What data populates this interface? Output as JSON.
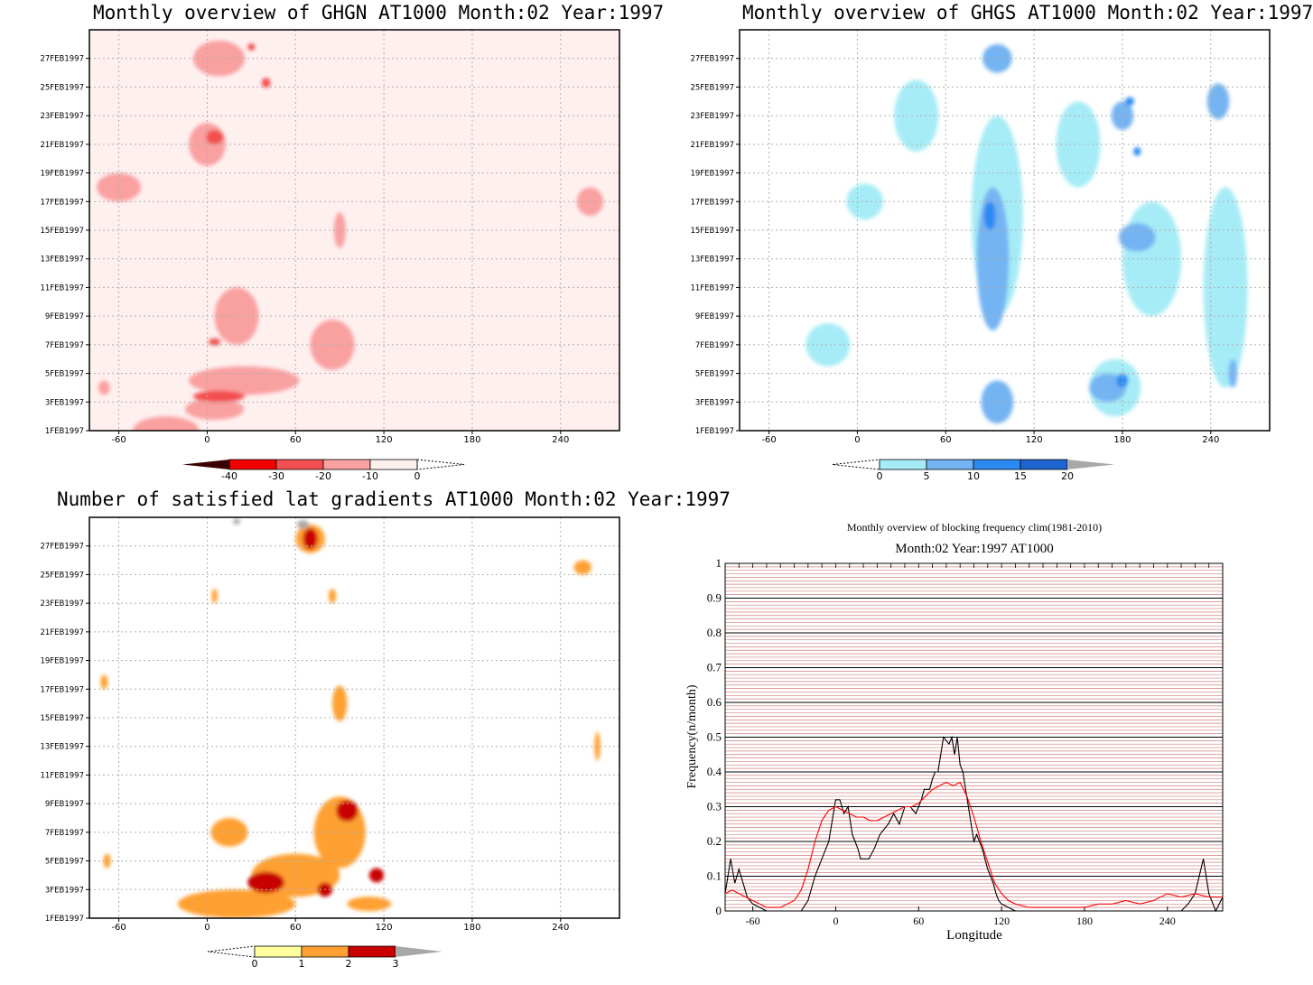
{
  "colors": {
    "ghgn": [
      "#fff0f0",
      "#f9a0a0",
      "#f25050",
      "#f00000",
      "#3a0000"
    ],
    "ghgs": [
      "#a6ecf6",
      "#74b4f2",
      "#2b8af2",
      "#1e63d0",
      "#a8a8a8"
    ],
    "grad": [
      "#ffffa0",
      "#ffa030",
      "#c80000",
      "#a8a8a8"
    ],
    "freq_series": [
      "#000000",
      "#ff0000"
    ]
  },
  "chart_data": [
    {
      "type": "heatmap",
      "title": "Monthly overview of GHGN AT1000 Month:02 Year:1997",
      "x_ticks": [
        "-60",
        "0",
        "60",
        "120",
        "180",
        "240"
      ],
      "y_ticks": [
        "1FEB1997",
        "3FEB1997",
        "5FEB1997",
        "7FEB1997",
        "9FEB1997",
        "11FEB1997",
        "13FEB1997",
        "15FEB1997",
        "17FEB1997",
        "19FEB1997",
        "21FEB1997",
        "23FEB1997",
        "25FEB1997",
        "27FEB1997"
      ],
      "xlim": [
        -80,
        280
      ],
      "colorbar": {
        "levels": [
          "-40",
          "-30",
          "-20",
          "-10",
          "0"
        ]
      },
      "blobs": [
        {
          "level": 1,
          "x": -28,
          "y": 0,
          "w": 45,
          "h": 2
        },
        {
          "level": 1,
          "x": 8,
          "y": 26,
          "w": 35,
          "h": 2.5
        },
        {
          "level": 1,
          "x": 0,
          "y": 20,
          "w": 25,
          "h": 3
        },
        {
          "level": 1,
          "x": -60,
          "y": 17,
          "w": 30,
          "h": 2
        },
        {
          "level": 1,
          "x": 20,
          "y": 8,
          "w": 30,
          "h": 4
        },
        {
          "level": 1,
          "x": 85,
          "y": 6,
          "w": 30,
          "h": 3.5
        },
        {
          "level": 1,
          "x": 25,
          "y": 3.5,
          "w": 75,
          "h": 2
        },
        {
          "level": 1,
          "x": 5,
          "y": 1.5,
          "w": 40,
          "h": 1.5
        },
        {
          "level": 1,
          "x": 90,
          "y": 14,
          "w": 8,
          "h": 2.5
        },
        {
          "level": 1,
          "x": 260,
          "y": 16,
          "w": 18,
          "h": 2
        },
        {
          "level": 1,
          "x": -70,
          "y": 3,
          "w": 8,
          "h": 1
        },
        {
          "level": 2,
          "x": 8,
          "y": 2.4,
          "w": 35,
          "h": 0.8
        },
        {
          "level": 2,
          "x": 5,
          "y": 20.5,
          "w": 12,
          "h": 1
        },
        {
          "level": 2,
          "x": 40,
          "y": 24.3,
          "w": 6,
          "h": 0.7
        },
        {
          "level": 2,
          "x": 5,
          "y": 6.2,
          "w": 8,
          "h": 0.5
        },
        {
          "level": 2,
          "x": 30,
          "y": 26.8,
          "w": 5,
          "h": 0.5
        }
      ]
    },
    {
      "type": "heatmap",
      "title": "Monthly overview of GHGS AT1000 Month:02 Year:1997",
      "x_ticks": [
        "-60",
        "0",
        "60",
        "120",
        "180",
        "240"
      ],
      "y_ticks": [
        "1FEB1997",
        "3FEB1997",
        "5FEB1997",
        "7FEB1997",
        "9FEB1997",
        "11FEB1997",
        "13FEB1997",
        "15FEB1997",
        "17FEB1997",
        "19FEB1997",
        "21FEB1997",
        "23FEB1997",
        "25FEB1997",
        "27FEB1997"
      ],
      "xlim": [
        -80,
        280
      ],
      "colorbar": {
        "levels": [
          "0",
          "5",
          "10",
          "15",
          "20"
        ]
      },
      "blobs": [
        {
          "level": 0,
          "x": 95,
          "y": 15,
          "w": 35,
          "h": 14
        },
        {
          "level": 0,
          "x": 200,
          "y": 12,
          "w": 40,
          "h": 8
        },
        {
          "level": 0,
          "x": 250,
          "y": 10,
          "w": 30,
          "h": 14
        },
        {
          "level": 0,
          "x": -20,
          "y": 6,
          "w": 30,
          "h": 3
        },
        {
          "level": 0,
          "x": 150,
          "y": 20,
          "w": 30,
          "h": 6
        },
        {
          "level": 0,
          "x": 40,
          "y": 22,
          "w": 30,
          "h": 5
        },
        {
          "level": 0,
          "x": 175,
          "y": 3,
          "w": 35,
          "h": 4
        },
        {
          "level": 0,
          "x": 5,
          "y": 16,
          "w": 25,
          "h": 2.5
        },
        {
          "level": 1,
          "x": 92,
          "y": 12,
          "w": 22,
          "h": 10
        },
        {
          "level": 1,
          "x": 95,
          "y": 2,
          "w": 22,
          "h": 3
        },
        {
          "level": 1,
          "x": 170,
          "y": 3,
          "w": 25,
          "h": 2
        },
        {
          "level": 1,
          "x": 190,
          "y": 13.5,
          "w": 25,
          "h": 2
        },
        {
          "level": 1,
          "x": 180,
          "y": 22,
          "w": 15,
          "h": 2
        },
        {
          "level": 1,
          "x": 95,
          "y": 26,
          "w": 20,
          "h": 2
        },
        {
          "level": 1,
          "x": 245,
          "y": 23,
          "w": 15,
          "h": 2.5
        },
        {
          "level": 1,
          "x": 255,
          "y": 4,
          "w": 6,
          "h": 2
        },
        {
          "level": 2,
          "x": 90,
          "y": 15,
          "w": 8,
          "h": 2
        },
        {
          "level": 2,
          "x": 180,
          "y": 3.5,
          "w": 8,
          "h": 1
        },
        {
          "level": 2,
          "x": 190,
          "y": 19.5,
          "w": 5,
          "h": 0.6
        },
        {
          "level": 2,
          "x": 185,
          "y": 23,
          "w": 6,
          "h": 0.6
        }
      ]
    },
    {
      "type": "heatmap",
      "title": "Number of satisfied lat gradients AT1000 Month:02 Year:1997",
      "x_ticks": [
        "-60",
        "0",
        "60",
        "120",
        "180",
        "240"
      ],
      "y_ticks": [
        "1FEB1997",
        "3FEB1997",
        "5FEB1997",
        "7FEB1997",
        "9FEB1997",
        "11FEB1997",
        "13FEB1997",
        "15FEB1997",
        "17FEB1997",
        "19FEB1997",
        "21FEB1997",
        "23FEB1997",
        "25FEB1997",
        "27FEB1997"
      ],
      "xlim": [
        -80,
        280
      ],
      "colorbar": {
        "levels": [
          "0",
          "1",
          "2",
          "3"
        ]
      },
      "blobs": [
        {
          "level": 1,
          "x": 70,
          "y": 26.5,
          "w": 20,
          "h": 2
        },
        {
          "level": 1,
          "x": 90,
          "y": 6,
          "w": 35,
          "h": 5
        },
        {
          "level": 1,
          "x": 15,
          "y": 6,
          "w": 25,
          "h": 2
        },
        {
          "level": 1,
          "x": 60,
          "y": 3,
          "w": 60,
          "h": 3
        },
        {
          "level": 1,
          "x": 20,
          "y": 1,
          "w": 80,
          "h": 2
        },
        {
          "level": 1,
          "x": 90,
          "y": 15,
          "w": 10,
          "h": 2.5
        },
        {
          "level": 1,
          "x": 255,
          "y": 24.5,
          "w": 12,
          "h": 1
        },
        {
          "level": 1,
          "x": -70,
          "y": 16.5,
          "w": 5,
          "h": 1
        },
        {
          "level": 1,
          "x": -68,
          "y": 4,
          "w": 5,
          "h": 1
        },
        {
          "level": 1,
          "x": 110,
          "y": 1,
          "w": 30,
          "h": 1
        },
        {
          "level": 1,
          "x": 265,
          "y": 12,
          "w": 4,
          "h": 2
        },
        {
          "level": 1,
          "x": 5,
          "y": 22.5,
          "w": 4,
          "h": 1
        },
        {
          "level": 1,
          "x": 85,
          "y": 22.5,
          "w": 5,
          "h": 1
        },
        {
          "level": 2,
          "x": 95,
          "y": 7.5,
          "w": 15,
          "h": 1.5
        },
        {
          "level": 2,
          "x": 40,
          "y": 2.5,
          "w": 25,
          "h": 1.5
        },
        {
          "level": 2,
          "x": 70,
          "y": 26.5,
          "w": 10,
          "h": 1.5
        },
        {
          "level": 2,
          "x": 115,
          "y": 3,
          "w": 10,
          "h": 1
        },
        {
          "level": 2,
          "x": 80,
          "y": 2,
          "w": 10,
          "h": 1
        },
        {
          "level": 3,
          "x": 65,
          "y": 27.5,
          "w": 8,
          "h": 0.6
        },
        {
          "level": 3,
          "x": 20,
          "y": 27.7,
          "w": 5,
          "h": 0.4
        }
      ]
    },
    {
      "type": "line",
      "title": "Monthly overview of blocking frequency clim(1981-2010)",
      "subtitle": "Month:02 Year:1997  AT1000",
      "xlabel": "Longitude",
      "ylabel": "Frequency(n/month)",
      "x_ticks": [
        "-60",
        "0",
        "60",
        "120",
        "180",
        "240"
      ],
      "y_ticks": [
        "0",
        "0.1",
        "0.2",
        "0.3",
        "0.4",
        "0.5",
        "0.6",
        "0.7",
        "0.8",
        "0.9",
        "1"
      ],
      "xlim": [
        -80,
        280
      ],
      "ylim": [
        0,
        1
      ],
      "series": [
        {
          "color": "#000000",
          "x": [
            -80,
            -76,
            -73,
            -70,
            -67,
            -64,
            -60,
            -55,
            -50,
            -40,
            -30,
            -25,
            -20,
            -15,
            -10,
            -5,
            0,
            3,
            6,
            9,
            12,
            14,
            16,
            18,
            20,
            24,
            28,
            32,
            38,
            42,
            46,
            50,
            54,
            58,
            60,
            62,
            64,
            68,
            70,
            72,
            74,
            78,
            82,
            84,
            86,
            88,
            90,
            92,
            94,
            96,
            98,
            100,
            102,
            104,
            106,
            108,
            110,
            112,
            114,
            116,
            118,
            120,
            125,
            130,
            140,
            150,
            160,
            170,
            180,
            190,
            200,
            210,
            220,
            230,
            240,
            245,
            250,
            255,
            260,
            263,
            266,
            270,
            275,
            280
          ],
          "y": [
            0.05,
            0.15,
            0.08,
            0.12,
            0.08,
            0.04,
            0.02,
            0.01,
            0.0,
            0.0,
            0.0,
            0.0,
            0.03,
            0.1,
            0.15,
            0.2,
            0.32,
            0.32,
            0.28,
            0.3,
            0.22,
            0.2,
            0.18,
            0.15,
            0.15,
            0.15,
            0.18,
            0.22,
            0.25,
            0.28,
            0.25,
            0.3,
            0.3,
            0.28,
            0.3,
            0.32,
            0.35,
            0.35,
            0.38,
            0.4,
            0.4,
            0.5,
            0.48,
            0.5,
            0.45,
            0.5,
            0.42,
            0.4,
            0.35,
            0.3,
            0.25,
            0.2,
            0.22,
            0.2,
            0.18,
            0.15,
            0.12,
            0.1,
            0.08,
            0.05,
            0.03,
            0.02,
            0.01,
            0.0,
            0.0,
            0.0,
            0.0,
            0.0,
            0.0,
            0.0,
            0.0,
            0.0,
            0.0,
            0.0,
            0.0,
            0.0,
            0.0,
            0.02,
            0.05,
            0.1,
            0.15,
            0.05,
            0.0,
            0.04
          ]
        },
        {
          "color": "#ff0000",
          "x": [
            -80,
            -75,
            -70,
            -65,
            -60,
            -55,
            -50,
            -45,
            -40,
            -35,
            -30,
            -25,
            -20,
            -15,
            -10,
            -5,
            0,
            5,
            10,
            15,
            20,
            25,
            30,
            35,
            40,
            45,
            50,
            55,
            60,
            65,
            70,
            75,
            80,
            85,
            90,
            95,
            100,
            105,
            110,
            115,
            120,
            125,
            130,
            140,
            150,
            160,
            170,
            180,
            190,
            200,
            210,
            220,
            230,
            240,
            250,
            260,
            270,
            280
          ],
          "y": [
            0.05,
            0.06,
            0.05,
            0.04,
            0.03,
            0.02,
            0.01,
            0.01,
            0.01,
            0.02,
            0.03,
            0.06,
            0.12,
            0.2,
            0.26,
            0.29,
            0.3,
            0.29,
            0.28,
            0.27,
            0.27,
            0.26,
            0.26,
            0.27,
            0.28,
            0.29,
            0.3,
            0.3,
            0.31,
            0.33,
            0.35,
            0.36,
            0.37,
            0.36,
            0.37,
            0.33,
            0.27,
            0.2,
            0.14,
            0.08,
            0.05,
            0.03,
            0.02,
            0.01,
            0.01,
            0.01,
            0.01,
            0.01,
            0.02,
            0.02,
            0.03,
            0.02,
            0.03,
            0.05,
            0.04,
            0.05,
            0.04,
            0.04
          ]
        }
      ]
    }
  ]
}
